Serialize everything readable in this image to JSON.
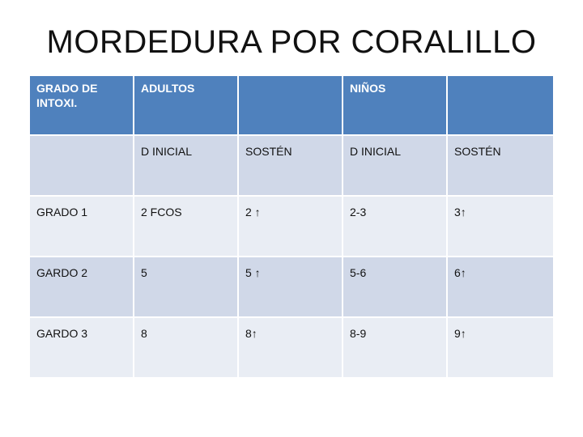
{
  "title": "MORDEDURA POR CORALILLO",
  "table": {
    "header": [
      "GRADO DE INTOXI.",
      "ADULTOS",
      "",
      "NIÑOS",
      ""
    ],
    "subheader": [
      "",
      "D INICIAL",
      "SOSTÉN",
      "D INICIAL",
      "SOSTÉN"
    ],
    "rows": [
      [
        "GRADO 1",
        "2 FCOS",
        "2 ↑",
        "2-3",
        "3↑"
      ],
      [
        "GARDO 2",
        "5",
        "5 ↑",
        "5-6",
        "6↑"
      ],
      [
        "GARDO 3",
        "8",
        "8↑",
        "8-9",
        "9↑"
      ]
    ]
  },
  "colors": {
    "header": "#4f81bd",
    "row_dark": "#d0d8e8",
    "row_light": "#e9edf4"
  }
}
